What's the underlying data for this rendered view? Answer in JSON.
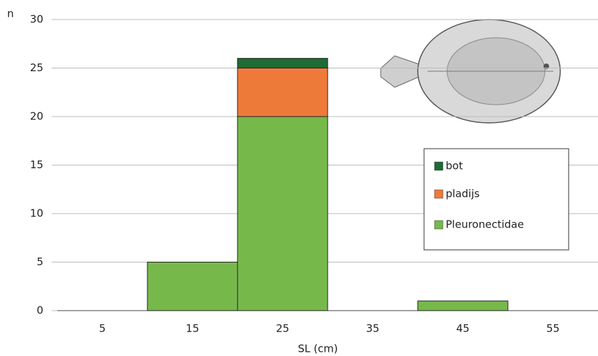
{
  "chart_data": {
    "type": "stacked-bar",
    "y_label": "n",
    "x_label": "SL (cm)",
    "categories": [
      "5",
      "15",
      "25",
      "35",
      "45",
      "55"
    ],
    "series": [
      {
        "name": "Pleuronectidae",
        "color": "#77b84b",
        "values": [
          0,
          5,
          20,
          0,
          1,
          0
        ]
      },
      {
        "name": "pladijs",
        "color": "#ee7a3a",
        "values": [
          0,
          0,
          5,
          0,
          0,
          0
        ]
      },
      {
        "name": "bot",
        "color": "#1d6b35",
        "values": [
          0,
          0,
          1,
          0,
          0,
          0
        ]
      }
    ],
    "ylim": [
      0,
      30
    ],
    "yticks": [
      0,
      5,
      10,
      15,
      20,
      25,
      30
    ],
    "grid": true
  }
}
